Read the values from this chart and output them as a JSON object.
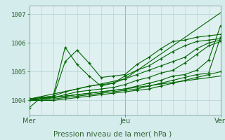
{
  "bg_color": "#d4ecec",
  "plot_bg": "#dff0f0",
  "grid_color": "#b0d0d0",
  "line_color": "#006600",
  "xlabel": "Pression niveau de la mer( hPa )",
  "xlabel_color": "#336633",
  "tick_color": "#336633",
  "ylim": [
    1003.5,
    1007.3
  ],
  "xlim": [
    0,
    96
  ],
  "yticks": [
    1004,
    1005,
    1006,
    1007
  ],
  "xtick_positions": [
    0,
    48,
    96
  ],
  "xtick_labels": [
    "Mer",
    "Jeu",
    "Ven"
  ],
  "series": [
    {
      "x": [
        0,
        6,
        12,
        18,
        24,
        30,
        36,
        42,
        48,
        54,
        60,
        66,
        72,
        78,
        84,
        90,
        96
      ],
      "y": [
        1003.75,
        1004.1,
        1004.1,
        1005.35,
        1005.75,
        1005.3,
        1004.8,
        1004.85,
        1004.9,
        1005.25,
        1005.5,
        1005.8,
        1006.05,
        1006.1,
        1006.2,
        1006.25,
        1006.3
      ],
      "marker": true,
      "ls": "-"
    },
    {
      "x": [
        0,
        6,
        12,
        18,
        24,
        30,
        36,
        42,
        48,
        54,
        60,
        66,
        72,
        78,
        84,
        90,
        96
      ],
      "y": [
        1004.05,
        1004.1,
        1004.15,
        1005.85,
        1005.25,
        1004.85,
        1004.5,
        1004.6,
        1004.85,
        1005.05,
        1005.2,
        1005.45,
        1005.7,
        1005.9,
        1006.05,
        1006.1,
        1006.15
      ],
      "marker": true,
      "ls": "-"
    },
    {
      "x": [
        0,
        6,
        12,
        18,
        24,
        30,
        36,
        42,
        48,
        54,
        60,
        66,
        72,
        78,
        84,
        90,
        96
      ],
      "y": [
        1004.05,
        1004.1,
        1004.15,
        1004.3,
        1004.4,
        1004.5,
        1004.55,
        1004.6,
        1004.75,
        1004.9,
        1005.05,
        1005.2,
        1005.35,
        1005.5,
        1005.8,
        1006.0,
        1006.1
      ],
      "marker": true,
      "ls": "-"
    },
    {
      "x": [
        0,
        6,
        12,
        18,
        24,
        30,
        36,
        42,
        48,
        54,
        60,
        66,
        72,
        78,
        84,
        90,
        96
      ],
      "y": [
        1004.05,
        1004.05,
        1004.1,
        1004.2,
        1004.3,
        1004.35,
        1004.4,
        1004.45,
        1004.55,
        1004.7,
        1004.8,
        1004.95,
        1005.05,
        1005.3,
        1005.6,
        1005.9,
        1006.05
      ],
      "marker": true,
      "ls": "-"
    },
    {
      "x": [
        0,
        6,
        12,
        18,
        24,
        30,
        36,
        42,
        48,
        54,
        60,
        66,
        72,
        78,
        84,
        90,
        96
      ],
      "y": [
        1004.0,
        1004.05,
        1004.1,
        1004.15,
        1004.2,
        1004.25,
        1004.3,
        1004.35,
        1004.4,
        1004.5,
        1004.6,
        1004.7,
        1004.85,
        1004.9,
        1005.05,
        1005.4,
        1006.6
      ],
      "marker": true,
      "ls": "-"
    },
    {
      "x": [
        0,
        6,
        12,
        18,
        24,
        30,
        36,
        42,
        48,
        54,
        60,
        66,
        72,
        78,
        84,
        90,
        96
      ],
      "y": [
        1004.0,
        1004.0,
        1004.05,
        1004.1,
        1004.15,
        1004.2,
        1004.25,
        1004.3,
        1004.35,
        1004.4,
        1004.5,
        1004.6,
        1004.7,
        1004.8,
        1004.9,
        1004.95,
        1006.2
      ],
      "marker": true,
      "ls": "-"
    },
    {
      "x": [
        0,
        6,
        12,
        18,
        24,
        30,
        36,
        42,
        48,
        54,
        60,
        66,
        72,
        78,
        84,
        90,
        96
      ],
      "y": [
        1004.0,
        1004.0,
        1004.0,
        1004.05,
        1004.1,
        1004.15,
        1004.2,
        1004.25,
        1004.3,
        1004.35,
        1004.4,
        1004.5,
        1004.6,
        1004.7,
        1004.8,
        1004.9,
        1005.0
      ],
      "marker": true,
      "ls": "-"
    },
    {
      "x": [
        0,
        48,
        96
      ],
      "y": [
        1004.0,
        1004.4,
        1004.85
      ],
      "marker": false,
      "ls": "-"
    },
    {
      "x": [
        0,
        48,
        96
      ],
      "y": [
        1004.05,
        1004.75,
        1007.05
      ],
      "marker": false,
      "ls": "-"
    }
  ]
}
